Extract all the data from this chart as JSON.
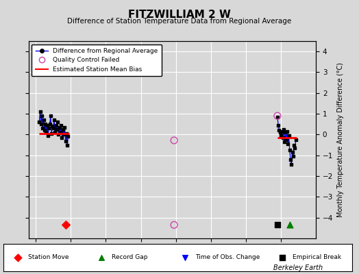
{
  "title": "FITZWILLIAM 2 W",
  "subtitle": "Difference of Station Temperature Data from Regional Average",
  "ylabel_right": "Monthly Temperature Anomaly Difference (°C)",
  "xlim": [
    1938,
    2020
  ],
  "ylim": [
    -5,
    4.5
  ],
  "yticks": [
    -4,
    -3,
    -2,
    -1,
    0,
    1,
    2,
    3,
    4
  ],
  "xticks": [
    1940,
    1950,
    1960,
    1970,
    1980,
    1990,
    2000,
    2010
  ],
  "background_color": "#d8d8d8",
  "plot_bg_color": "#d8d8d8",
  "grid_color": "#ffffff",
  "watermark": "Berkeley Earth",
  "segment1_bias": 0.05,
  "segment1_x_start": 1941.0,
  "segment1_x_end": 1949.5,
  "segment1_data_x": [
    1941.0,
    1941.25,
    1941.5,
    1941.75,
    1942.0,
    1942.25,
    1942.5,
    1942.75,
    1943.0,
    1943.25,
    1943.5,
    1943.75,
    1944.0,
    1944.25,
    1944.5,
    1944.75,
    1945.0,
    1945.25,
    1945.5,
    1945.75,
    1946.0,
    1946.25,
    1946.5,
    1946.75,
    1947.0,
    1947.25,
    1947.5,
    1947.75,
    1948.0,
    1948.25,
    1948.5,
    1948.75,
    1949.0,
    1949.25
  ],
  "segment1_data_y": [
    0.6,
    1.1,
    0.5,
    0.9,
    0.3,
    0.7,
    0.2,
    0.5,
    0.1,
    0.45,
    -0.05,
    0.3,
    0.5,
    0.9,
    0.05,
    0.4,
    0.3,
    0.7,
    0.1,
    0.45,
    0.25,
    0.6,
    0.0,
    0.35,
    0.1,
    0.45,
    -0.15,
    0.25,
    0.0,
    0.35,
    -0.3,
    0.05,
    -0.5,
    -0.1
  ],
  "segment2_bias": -0.15,
  "segment2_x_start": 2009.0,
  "segment2_x_end": 2014.5,
  "segment2_data_x": [
    2009.0,
    2009.25,
    2009.5,
    2009.75,
    2010.0,
    2010.25,
    2010.5,
    2010.75,
    2011.0,
    2011.25,
    2011.5,
    2011.75,
    2012.0,
    2012.25,
    2012.5,
    2012.75,
    2013.0,
    2013.25,
    2013.5,
    2013.75,
    2014.0,
    2014.25
  ],
  "segment2_data_y": [
    0.85,
    0.45,
    0.2,
    0.1,
    -0.05,
    0.15,
    -0.15,
    0.25,
    -0.35,
    0.1,
    -0.25,
    0.15,
    -0.45,
    -0.05,
    -0.75,
    -1.2,
    -1.45,
    -0.85,
    -1.05,
    -0.5,
    -0.65,
    -0.25
  ],
  "qc_failed_1_x": 1979.5,
  "qc_failed_1_y": -0.28,
  "qc_failed_2_x": 1979.5,
  "qc_failed_2_y": -4.35,
  "qc_failed_top_x": 2009.0,
  "qc_failed_top_y": 0.9,
  "station_move_x": 1948.5,
  "station_move_y": -4.35,
  "record_gap_x": 2012.5,
  "record_gap_y": -4.35,
  "empirical_break_x": 2009.0,
  "empirical_break_y": -4.35
}
